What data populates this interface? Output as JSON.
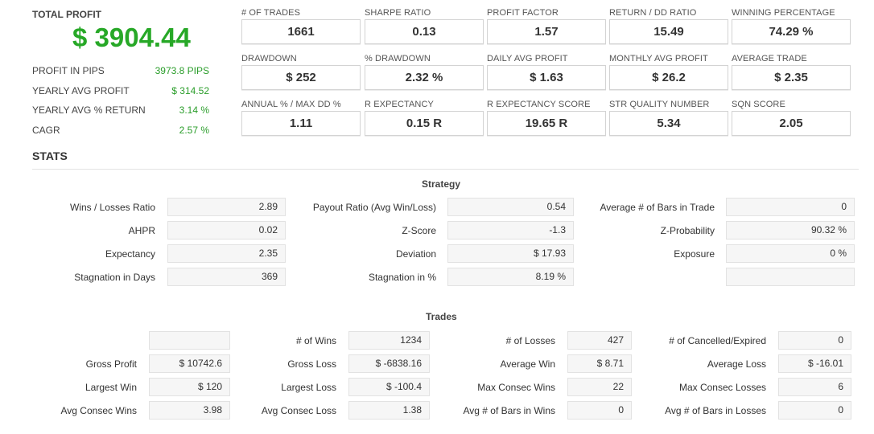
{
  "summary": {
    "total_profit_label": "TOTAL PROFIT",
    "total_profit_value": "$ 3904.44",
    "rows": [
      {
        "label": "PROFIT IN PIPS",
        "value": "3973.8 PIPS"
      },
      {
        "label": "YEARLY AVG PROFIT",
        "value": "$ 314.52"
      },
      {
        "label": "YEARLY AVG % RETURN",
        "value": "3.14 %"
      },
      {
        "label": "CAGR",
        "value": "2.57 %"
      }
    ]
  },
  "metrics": [
    [
      {
        "label": "# OF TRADES",
        "value": "1661"
      },
      {
        "label": "SHARPE RATIO",
        "value": "0.13"
      },
      {
        "label": "PROFIT FACTOR",
        "value": "1.57"
      },
      {
        "label": "RETURN / DD RATIO",
        "value": "15.49"
      },
      {
        "label": "WINNING PERCENTAGE",
        "value": "74.29 %"
      }
    ],
    [
      {
        "label": "DRAWDOWN",
        "value": "$ 252"
      },
      {
        "label": "% DRAWDOWN",
        "value": "2.32 %"
      },
      {
        "label": "DAILY AVG PROFIT",
        "value": "$ 1.63"
      },
      {
        "label": "MONTHLY AVG PROFIT",
        "value": "$ 26.2"
      },
      {
        "label": "AVERAGE TRADE",
        "value": "$ 2.35"
      }
    ],
    [
      {
        "label": "ANNUAL % / MAX DD %",
        "value": "1.11"
      },
      {
        "label": "R EXPECTANCY",
        "value": "0.15 R"
      },
      {
        "label": "R EXPECTANCY SCORE",
        "value": "19.65 R"
      },
      {
        "label": "STR QUALITY NUMBER",
        "value": "5.34"
      },
      {
        "label": "SQN SCORE",
        "value": "2.05"
      }
    ]
  ],
  "stats_title": "STATS",
  "strategy": {
    "title": "Strategy",
    "rows": [
      [
        {
          "label": "Wins / Losses Ratio",
          "value": "2.89"
        },
        {
          "label": "Payout Ratio (Avg Win/Loss)",
          "value": "0.54"
        },
        {
          "label": "Average # of Bars in Trade",
          "value": "0"
        }
      ],
      [
        {
          "label": "AHPR",
          "value": "0.02"
        },
        {
          "label": "Z-Score",
          "value": "-1.3"
        },
        {
          "label": "Z-Probability",
          "value": "90.32 %"
        }
      ],
      [
        {
          "label": "Expectancy",
          "value": "2.35"
        },
        {
          "label": "Deviation",
          "value": "$ 17.93"
        },
        {
          "label": "Exposure",
          "value": "0 %"
        }
      ],
      [
        {
          "label": "Stagnation in Days",
          "value": "369"
        },
        {
          "label": "Stagnation in %",
          "value": "8.19 %"
        },
        {
          "label": "",
          "value": ""
        }
      ]
    ]
  },
  "trades": {
    "title": "Trades",
    "rows": [
      [
        {
          "label": "",
          "value": ""
        },
        {
          "label": "# of Wins",
          "value": "1234"
        },
        {
          "label": "# of Losses",
          "value": "427"
        },
        {
          "label": "# of Cancelled/Expired",
          "value": "0"
        }
      ],
      [
        {
          "label": "Gross Profit",
          "value": "$ 10742.6"
        },
        {
          "label": "Gross Loss",
          "value": "$ -6838.16"
        },
        {
          "label": "Average Win",
          "value": "$ 8.71"
        },
        {
          "label": "Average Loss",
          "value": "$ -16.01"
        }
      ],
      [
        {
          "label": "Largest Win",
          "value": "$ 120"
        },
        {
          "label": "Largest Loss",
          "value": "$ -100.4"
        },
        {
          "label": "Max Consec Wins",
          "value": "22"
        },
        {
          "label": "Max Consec Losses",
          "value": "6"
        }
      ],
      [
        {
          "label": "Avg Consec Wins",
          "value": "3.98"
        },
        {
          "label": "Avg Consec Loss",
          "value": "1.38"
        },
        {
          "label": "Avg # of Bars in Wins",
          "value": "0"
        },
        {
          "label": "Avg # of Bars in Losses",
          "value": "0"
        }
      ]
    ]
  }
}
